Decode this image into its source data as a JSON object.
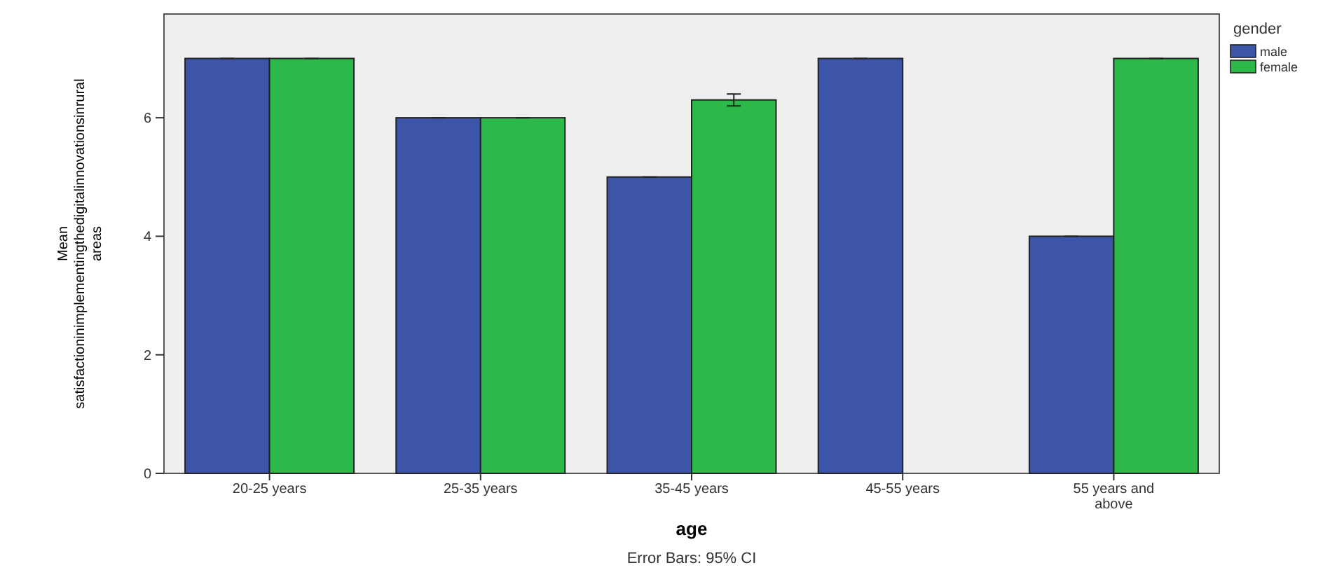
{
  "chart_data": {
    "type": "bar",
    "xlabel": "age",
    "ylabel": "Mean satisfactioninimplementingthedigitalinnovationsinrural areas",
    "legend_title": "gender",
    "categories": [
      "20-25 years",
      "25-35 years",
      "35-45 years",
      "45-55 years",
      "55 years and above"
    ],
    "series": [
      {
        "name": "male",
        "color": "#3d55a8",
        "values": [
          7,
          6,
          5,
          7,
          4
        ],
        "errors": [
          0,
          0,
          0,
          0,
          0
        ]
      },
      {
        "name": "female",
        "color": "#2db84a",
        "values": [
          7,
          6,
          6.3,
          null,
          7
        ],
        "errors": [
          0,
          0,
          0.1,
          null,
          0
        ]
      }
    ],
    "ylim": [
      0,
      7.75
    ],
    "yticks": [
      0,
      2,
      4,
      6
    ],
    "legend": "top right",
    "grid": false,
    "annotations": [
      "Error Bars: 95% CI"
    ]
  }
}
